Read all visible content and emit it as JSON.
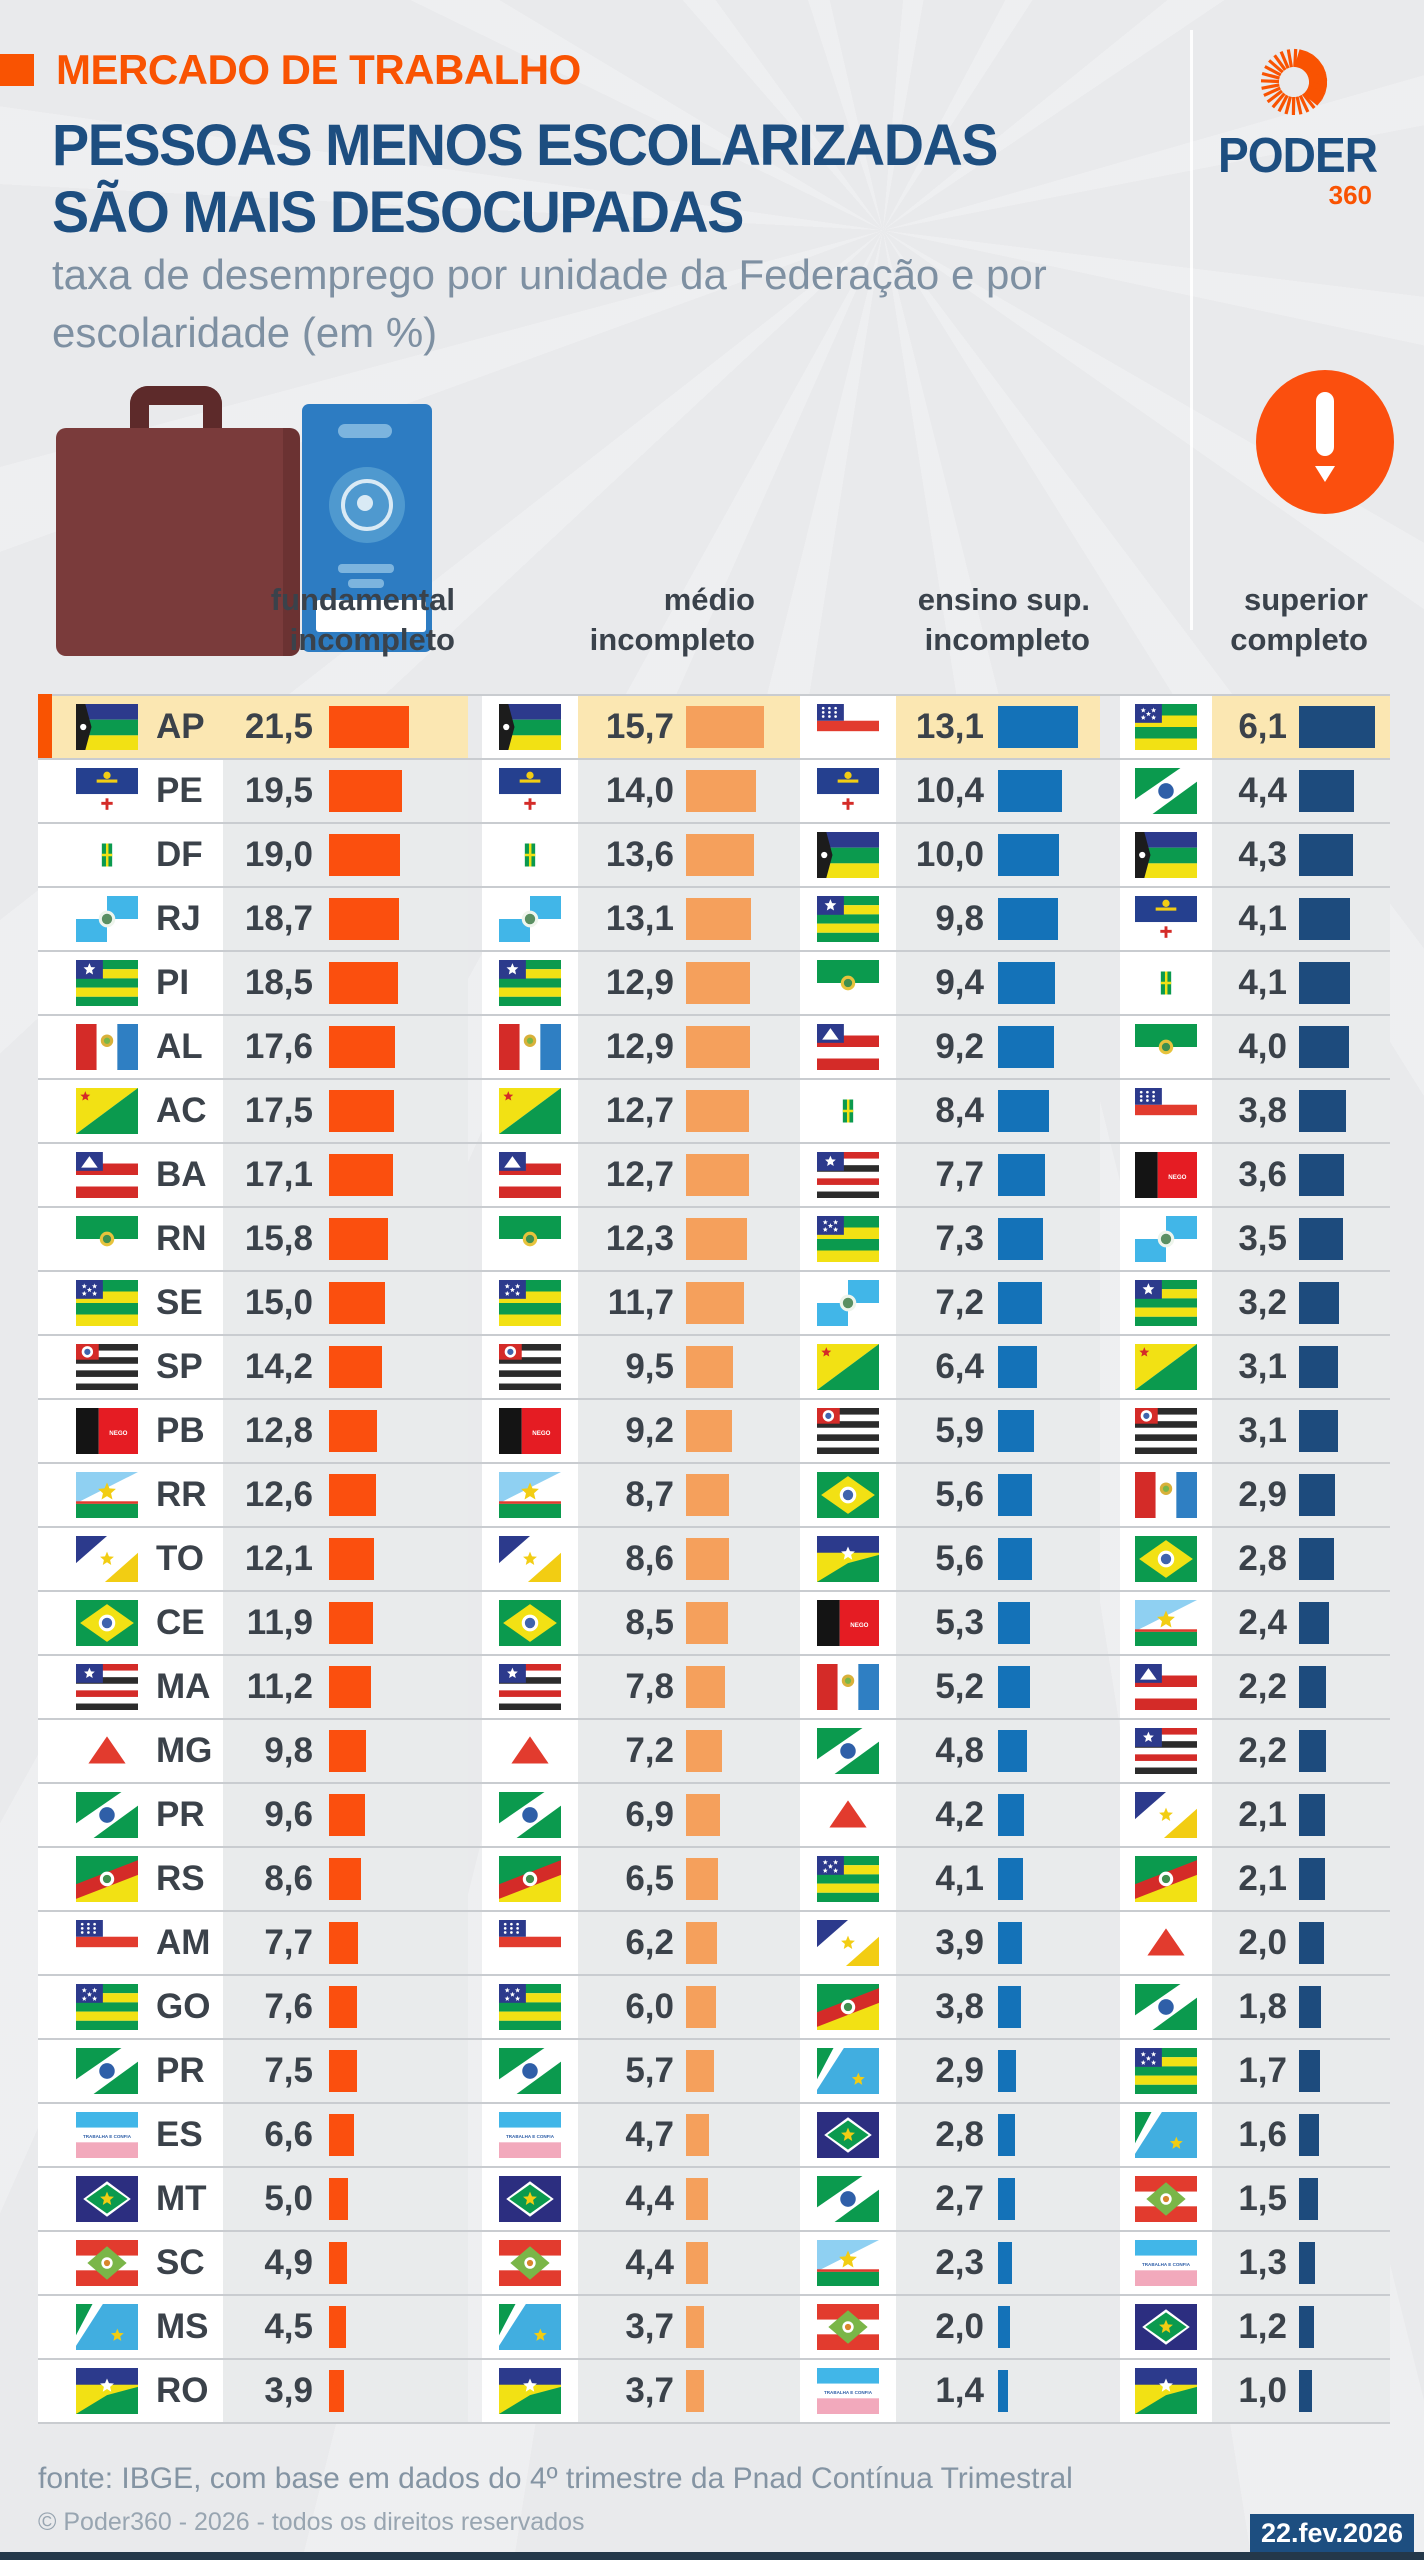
{
  "header": {
    "tag": "MERCADO DE TRABALHO",
    "title": [
      "PESSOAS MENOS ESCOLARIZADAS",
      "SÃO MAIS DESOCUPADAS"
    ],
    "subtitle": [
      "taxa de desemprego por unidade da Federação e por",
      "escolaridade (em %)"
    ]
  },
  "logo": {
    "word": "PODER",
    "number": "360"
  },
  "icons": {
    "suitcase": "suitcase-illustration",
    "work_card": "work-card-illustration",
    "alert": "exclamation-badge"
  },
  "colors": {
    "accent_orange": "#f95302",
    "bar_fundamental": "#fb4f0e",
    "bar_medio": "#f5a05c",
    "bar_sup_incompleto": "#1472b8",
    "bar_sup_completo": "#1d4b7d",
    "title_navy": "#1d4e80",
    "highlight_row": "#fbe7b2",
    "background": "#e9eaec"
  },
  "chart_data": {
    "type": "bar",
    "unit": "%",
    "title": "PESSOAS MENOS ESCOLARIZADAS SÃO MAIS DESOCUPADAS",
    "subtitle": "taxa de desemprego por unidade da Federação e por escolaridade (em %)",
    "layout": "4 independently-sorted descending bar columns, 27 rows (flags per state), first row highlighted",
    "columns": [
      {
        "title": "fundamental incompleto",
        "bar_color": "#fb4f0e",
        "max": 21.5,
        "show_state_label": true,
        "entries": [
          [
            "AP",
            21.5
          ],
          [
            "PE",
            19.5
          ],
          [
            "DF",
            19.0
          ],
          [
            "RJ",
            18.7
          ],
          [
            "PI",
            18.5
          ],
          [
            "AL",
            17.6
          ],
          [
            "AC",
            17.5
          ],
          [
            "BA",
            17.1
          ],
          [
            "RN",
            15.8
          ],
          [
            "SE",
            15.0
          ],
          [
            "SP",
            14.2
          ],
          [
            "PB",
            12.8
          ],
          [
            "RR",
            12.6
          ],
          [
            "TO",
            12.1
          ],
          [
            "CE",
            11.9
          ],
          [
            "MA",
            11.2
          ],
          [
            "MG",
            9.8
          ],
          [
            "PR",
            9.6
          ],
          [
            "RS",
            8.6
          ],
          [
            "AM",
            7.7
          ],
          [
            "GO",
            7.6
          ],
          [
            "PR",
            7.5
          ],
          [
            "ES",
            6.6
          ],
          [
            "MT",
            5.0
          ],
          [
            "SC",
            4.9
          ],
          [
            "MS",
            4.5
          ],
          [
            "RO",
            3.9
          ]
        ]
      },
      {
        "title": "médio incompleto",
        "bar_color": "#f5a05c",
        "max": 15.7,
        "show_state_label": false,
        "entries": [
          [
            "AP",
            15.7
          ],
          [
            "PE",
            14.0
          ],
          [
            "DF",
            13.6
          ],
          [
            "RJ",
            13.1
          ],
          [
            "PI",
            12.9
          ],
          [
            "AL",
            12.9
          ],
          [
            "AC",
            12.7
          ],
          [
            "BA",
            12.7
          ],
          [
            "RN",
            12.3
          ],
          [
            "SE",
            11.7
          ],
          [
            "SP",
            9.5
          ],
          [
            "PB",
            9.2
          ],
          [
            "RR",
            8.7
          ],
          [
            "TO",
            8.6
          ],
          [
            "CE",
            8.5
          ],
          [
            "MA",
            7.8
          ],
          [
            "MG",
            7.2
          ],
          [
            "PR",
            6.9
          ],
          [
            "RS",
            6.5
          ],
          [
            "AM",
            6.2
          ],
          [
            "GO",
            6.0
          ],
          [
            "PR",
            5.7
          ],
          [
            "ES",
            4.7
          ],
          [
            "MT",
            4.4
          ],
          [
            "SC",
            4.4
          ],
          [
            "MS",
            3.7
          ],
          [
            "RO",
            3.7
          ]
        ]
      },
      {
        "title": "ensino sup. incompleto",
        "bar_color": "#1472b8",
        "max": 13.1,
        "show_state_label": false,
        "entries": [
          [
            "AM",
            13.1
          ],
          [
            "PE",
            10.4
          ],
          [
            "AP",
            10.0
          ],
          [
            "PI",
            9.8
          ],
          [
            "RN",
            9.4
          ],
          [
            "BA",
            9.2
          ],
          [
            "DF",
            8.4
          ],
          [
            "MA",
            7.7
          ],
          [
            "SE",
            7.3
          ],
          [
            "RJ",
            7.2
          ],
          [
            "AC",
            6.4
          ],
          [
            "SP",
            5.9
          ],
          [
            "CE",
            5.6
          ],
          [
            "RO",
            5.6
          ],
          [
            "PB",
            5.3
          ],
          [
            "AL",
            5.2
          ],
          [
            "PR",
            4.8
          ],
          [
            "MG",
            4.2
          ],
          [
            "GO",
            4.1
          ],
          [
            "TO",
            3.9
          ],
          [
            "RS",
            3.8
          ],
          [
            "MS",
            2.9
          ],
          [
            "MT",
            2.8
          ],
          [
            "PR",
            2.7
          ],
          [
            "RR",
            2.3
          ],
          [
            "SC",
            2.0
          ],
          [
            "ES",
            1.4
          ]
        ]
      },
      {
        "title": "superior completo",
        "bar_color": "#1d4b7d",
        "max": 6.1,
        "show_state_label": false,
        "entries": [
          [
            "SE",
            6.1
          ],
          [
            "PR",
            4.4
          ],
          [
            "AP",
            4.3
          ],
          [
            "PE",
            4.1
          ],
          [
            "DF",
            4.1
          ],
          [
            "RN",
            4.0
          ],
          [
            "AM",
            3.8
          ],
          [
            "PB",
            3.6
          ],
          [
            "RJ",
            3.5
          ],
          [
            "PI",
            3.2
          ],
          [
            "AC",
            3.1
          ],
          [
            "SP",
            3.1
          ],
          [
            "AL",
            2.9
          ],
          [
            "CE",
            2.8
          ],
          [
            "RR",
            2.4
          ],
          [
            "BA",
            2.2
          ],
          [
            "MA",
            2.2
          ],
          [
            "TO",
            2.1
          ],
          [
            "RS",
            2.1
          ],
          [
            "MG",
            2.0
          ],
          [
            "PR",
            1.8
          ],
          [
            "GO",
            1.7
          ],
          [
            "MS",
            1.6
          ],
          [
            "SC",
            1.5
          ],
          [
            "ES",
            1.3
          ],
          [
            "MT",
            1.2
          ],
          [
            "RO",
            1.0
          ]
        ]
      }
    ]
  },
  "column_headers": [
    {
      "label": [
        "fundamental",
        "incompleto"
      ]
    },
    {
      "label": [
        "médio",
        "incompleto"
      ]
    },
    {
      "label": [
        "ensino sup.",
        "incompleto"
      ]
    },
    {
      "label": [
        "superior",
        "completo"
      ]
    }
  ],
  "footer": {
    "source": "fonte: IBGE, com base em dados do 4º trimestre da Pnad Contínua Trimestral",
    "copyright": "© Poder360 - 2026 - todos os direitos reservados",
    "date": "22.fev.2026"
  }
}
